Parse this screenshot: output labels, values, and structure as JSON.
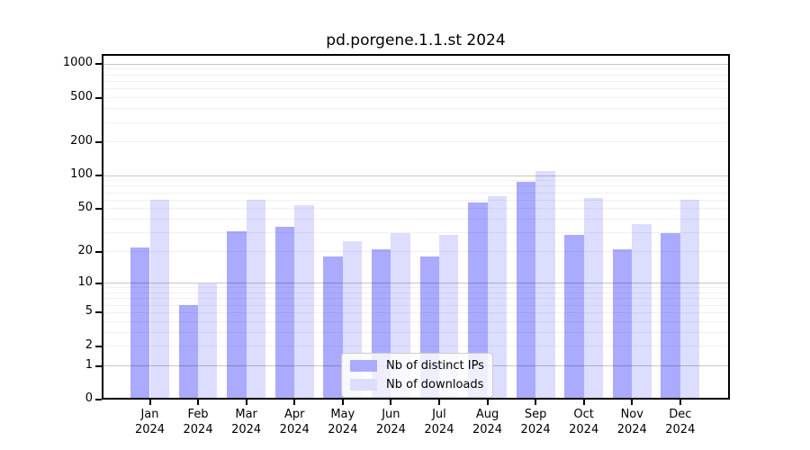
{
  "chart_data": {
    "type": "bar",
    "title": "pd.porgene.1.1.st 2024",
    "categories": [
      "Jan",
      "Feb",
      "Mar",
      "Apr",
      "May",
      "Jun",
      "Jul",
      "Aug",
      "Sep",
      "Oct",
      "Nov",
      "Dec"
    ],
    "category_year": "2024",
    "series": [
      {
        "name": "Nb of distinct IPs",
        "color": "#aaaaff",
        "values": [
          22,
          6,
          31,
          34,
          18,
          21,
          18,
          57,
          88,
          29,
          21,
          30
        ]
      },
      {
        "name": "Nb of downloads",
        "color": "#ddddff",
        "values": [
          60,
          10,
          60,
          54,
          25,
          30,
          29,
          65,
          110,
          63,
          36,
          60
        ]
      }
    ],
    "yscale": "log10(value+1)",
    "y_ticks": [
      0,
      1,
      2,
      5,
      10,
      20,
      50,
      100,
      200,
      500,
      1000
    ],
    "y_max": 1233,
    "grid": {
      "major": [
        1,
        10,
        100,
        1000
      ],
      "minor": [
        2,
        3,
        4,
        5,
        6,
        7,
        8,
        9,
        20,
        30,
        40,
        50,
        60,
        70,
        80,
        90,
        200,
        300,
        400,
        500,
        600,
        700,
        800,
        900
      ]
    },
    "legend_position": "lower center",
    "axis_color": "#000000",
    "background_color": "#ffffff"
  }
}
